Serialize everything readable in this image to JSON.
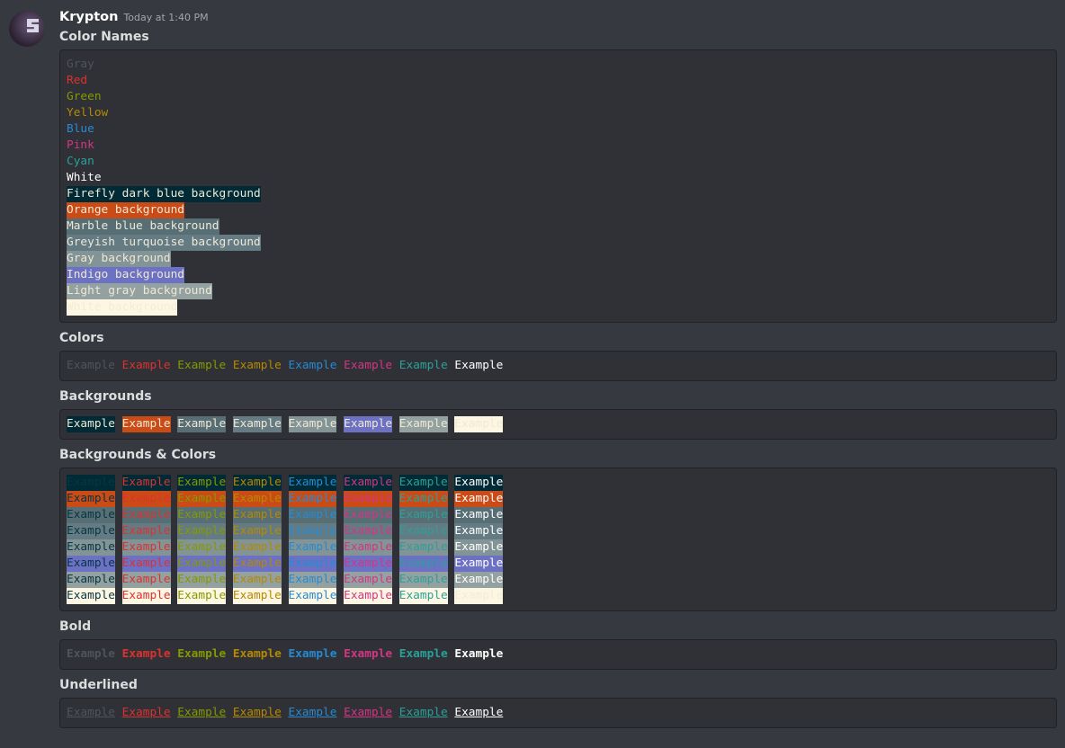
{
  "message": {
    "author": "Krypton",
    "timestamp": "Today at 1:40 PM"
  },
  "palette": {
    "fg": {
      "gray": "#4f545c",
      "red": "#dc322f",
      "green": "#859900",
      "yellow": "#b58900",
      "blue": "#268bd2",
      "pink": "#d33682",
      "cyan": "#2aa198",
      "white": "#ffffff"
    },
    "bg": {
      "firefly": "#002b36",
      "orange": "#cb4b16",
      "marble": "#586e75",
      "turquoise": "#657b83",
      "gray": "#839496",
      "indigo": "#6c71c4",
      "lightgray": "#93a1a1",
      "white": "#fdf6e3"
    },
    "grid_first_fg": "#073642"
  },
  "sections": {
    "color_names": {
      "title": "Color Names",
      "lines": [
        {
          "text": "Gray",
          "fg": "gray"
        },
        {
          "text": "Red",
          "fg": "red"
        },
        {
          "text": "Green",
          "fg": "green"
        },
        {
          "text": "Yellow",
          "fg": "yellow"
        },
        {
          "text": "Blue",
          "fg": "blue"
        },
        {
          "text": "Pink",
          "fg": "pink"
        },
        {
          "text": "Cyan",
          "fg": "cyan"
        },
        {
          "text": "White",
          "fg": "white"
        },
        {
          "text": "Firefly dark blue background",
          "bg": "firefly"
        },
        {
          "text": "Orange background",
          "bg": "orange"
        },
        {
          "text": "Marble blue background",
          "bg": "marble"
        },
        {
          "text": "Greyish turquoise background",
          "bg": "turquoise"
        },
        {
          "text": "Gray background",
          "bg": "gray"
        },
        {
          "text": "Indigo background",
          "bg": "indigo"
        },
        {
          "text": "Light gray background",
          "bg": "lightgray"
        },
        {
          "text": "White background",
          "bg": "white"
        }
      ]
    },
    "colors": {
      "title": "Colors",
      "word": "Example"
    },
    "backgrounds": {
      "title": "Backgrounds",
      "word": "Example"
    },
    "backgrounds_colors": {
      "title": "Backgrounds & Colors",
      "word": "Example"
    },
    "bold": {
      "title": "Bold",
      "word": "Example"
    },
    "underlined": {
      "title": "Underlined",
      "word": "Example"
    }
  }
}
